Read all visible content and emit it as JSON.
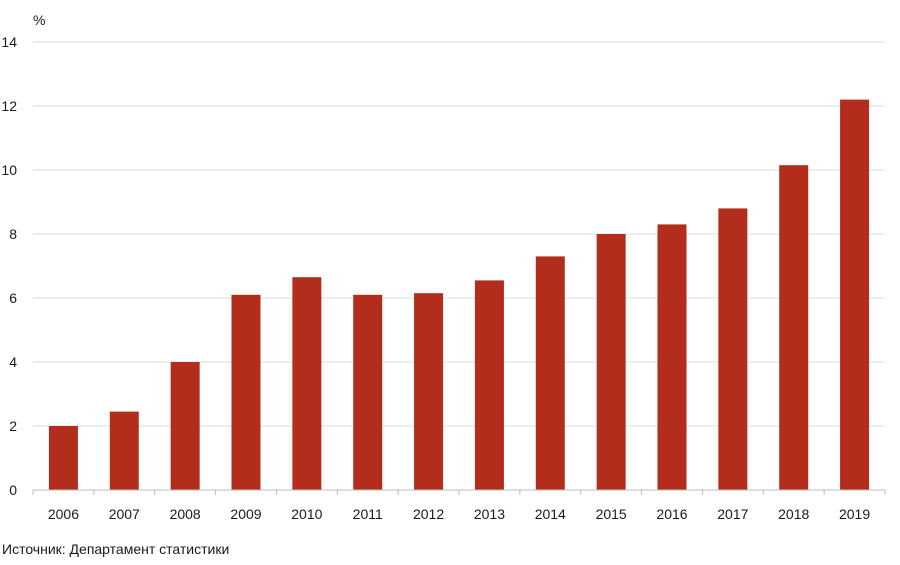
{
  "chart_data": {
    "type": "bar",
    "categories": [
      "2006",
      "2007",
      "2008",
      "2009",
      "2010",
      "2011",
      "2012",
      "2013",
      "2014",
      "2015",
      "2016",
      "2017",
      "2018",
      "2019"
    ],
    "values": [
      2.0,
      2.45,
      4.0,
      6.1,
      6.65,
      6.1,
      6.15,
      6.55,
      7.3,
      8.0,
      8.3,
      8.8,
      10.15,
      12.2
    ],
    "ylabel": "%",
    "xlabel": "",
    "ylim": [
      0,
      14
    ],
    "yticks": [
      0,
      2,
      4,
      6,
      8,
      10,
      12,
      14
    ],
    "grid": true,
    "legend": "none",
    "bar_color": "#b22d1b"
  },
  "source_note": "Источник: Департамент статистики"
}
